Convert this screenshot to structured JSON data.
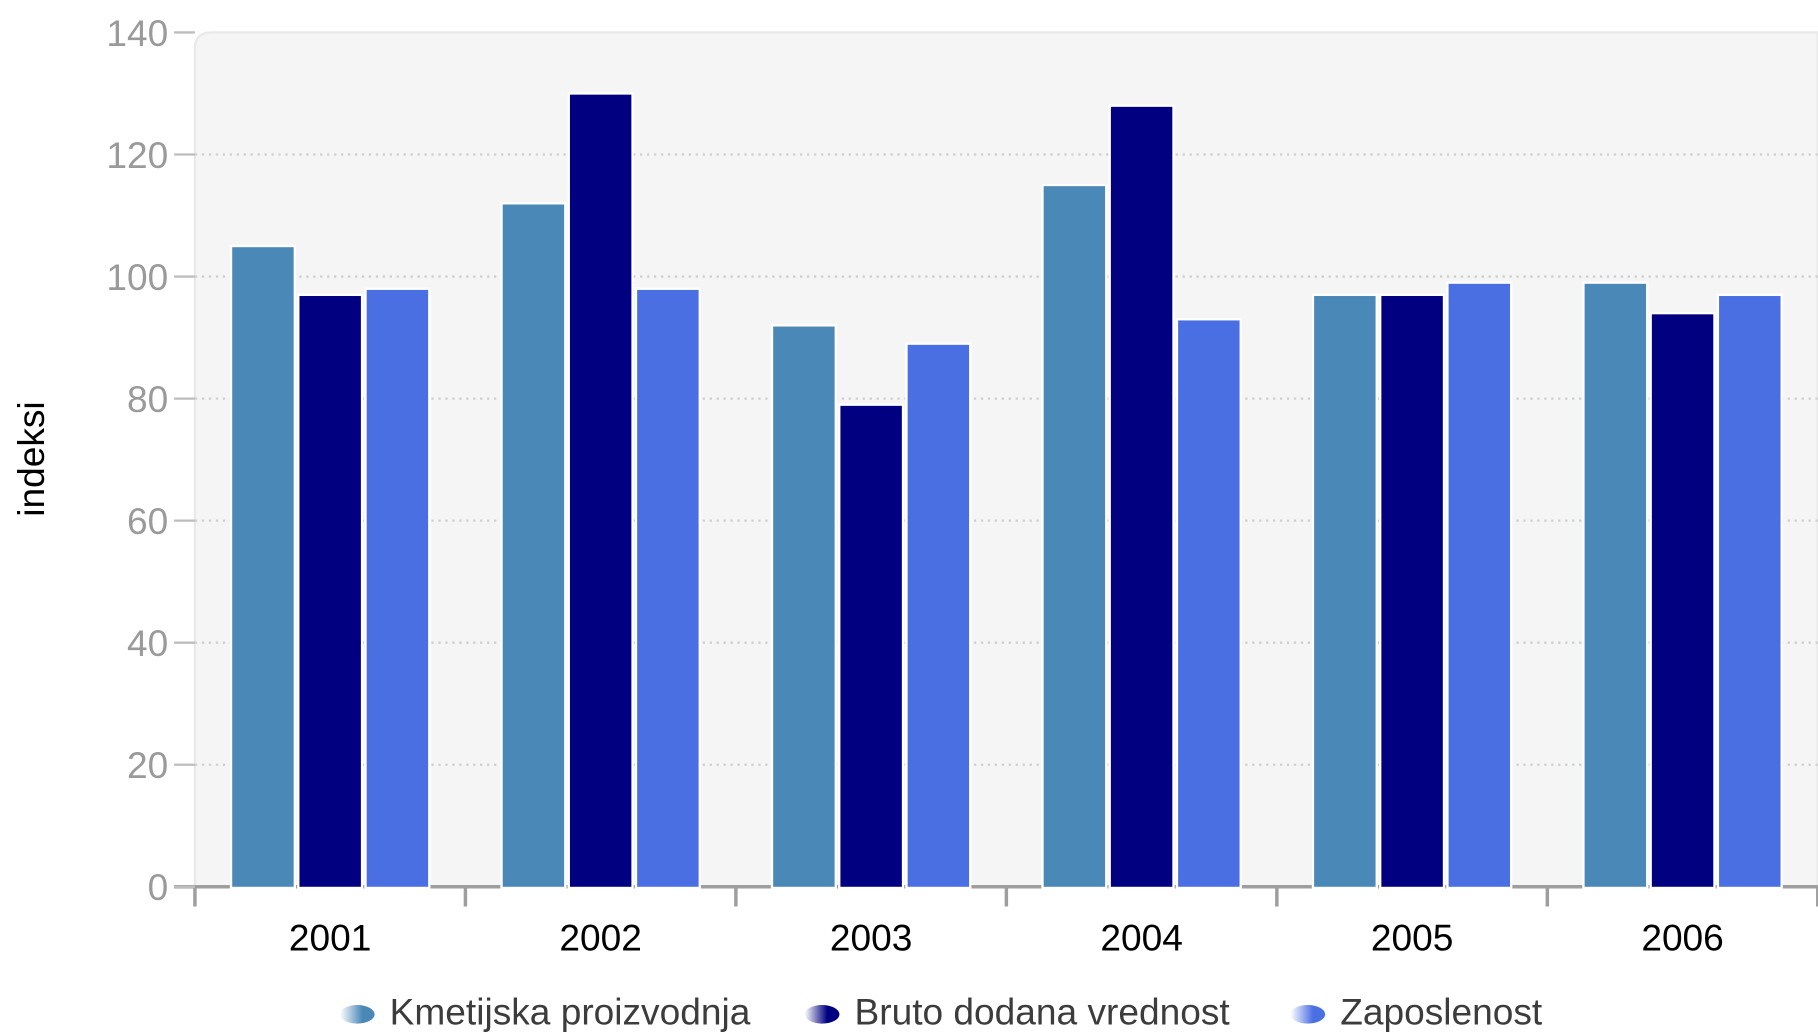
{
  "chart_data": {
    "type": "bar",
    "title": "",
    "xlabel": "",
    "ylabel": "indeksi",
    "ylim": [
      0,
      140
    ],
    "yticks": [
      0,
      20,
      40,
      60,
      80,
      100,
      120,
      140
    ],
    "grid": true,
    "legend_position": "bottom",
    "categories": [
      "2001",
      "2002",
      "2003",
      "2004",
      "2005",
      "2006"
    ],
    "series": [
      {
        "name": "Kmetijska proizvodnja",
        "color": "#4a88b8",
        "values": [
          105,
          112,
          92,
          115,
          97,
          99
        ]
      },
      {
        "name": "Bruto dodana vrednost",
        "color": "#000080",
        "values": [
          97,
          130,
          79,
          128,
          97,
          94
        ]
      },
      {
        "name": "Zaposlenost",
        "color": "#4a6fe3",
        "values": [
          98,
          98,
          89,
          93,
          99,
          97
        ]
      }
    ]
  }
}
